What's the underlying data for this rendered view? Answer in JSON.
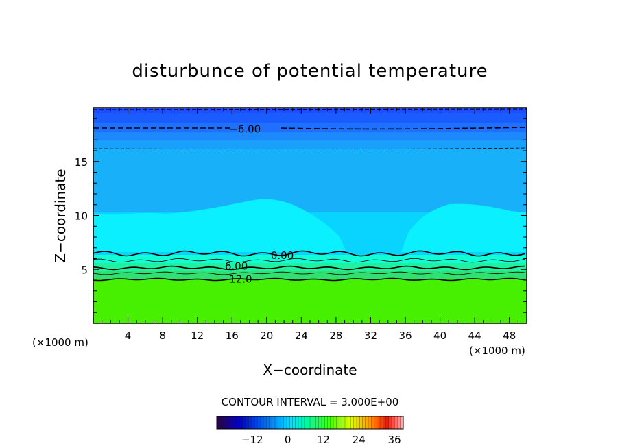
{
  "chart_data": {
    "type": "contour",
    "title": "disturbunce of potential temperature",
    "xlabel": "X−coordinate",
    "ylabel": "Z−coordinate",
    "x_unit_left": "(×1000 m)",
    "x_unit_right": "(×1000 m)",
    "xlim": [
      0,
      50
    ],
    "ylim": [
      0,
      20
    ],
    "xticks": [
      4,
      8,
      12,
      16,
      20,
      24,
      28,
      32,
      36,
      40,
      44,
      48
    ],
    "yticks": [
      5,
      10,
      15
    ],
    "contour_interval_text": "CONTOUR INTERVAL = 3.000E+00",
    "contour_labels": [
      {
        "text": "−6.00",
        "x": 17.5,
        "z": 18.0
      },
      {
        "text": "0.00",
        "x": 21.8,
        "z": 6.3
      },
      {
        "text": "6.00",
        "x": 16.5,
        "z": 5.3
      },
      {
        "text": "12.0",
        "x": 17.0,
        "z": 4.1
      }
    ],
    "colorbar": {
      "vmin": -24,
      "vmax": 39,
      "ticks": [
        -12,
        0,
        12,
        24,
        36
      ],
      "tick_labels": [
        "−12",
        "0",
        "12",
        "24",
        "36"
      ]
    },
    "colors": {
      "top_band_dark": "#1e4cff",
      "top_band_mid": "#1f70ff",
      "upper_field": "#18b0f8",
      "mid_field": "#08d4ff",
      "plume": "#0af0ff",
      "layer1": "#10ffd6",
      "layer2": "#20f0a0",
      "layer3": "#30e070",
      "lower_field": "#46f000"
    }
  }
}
